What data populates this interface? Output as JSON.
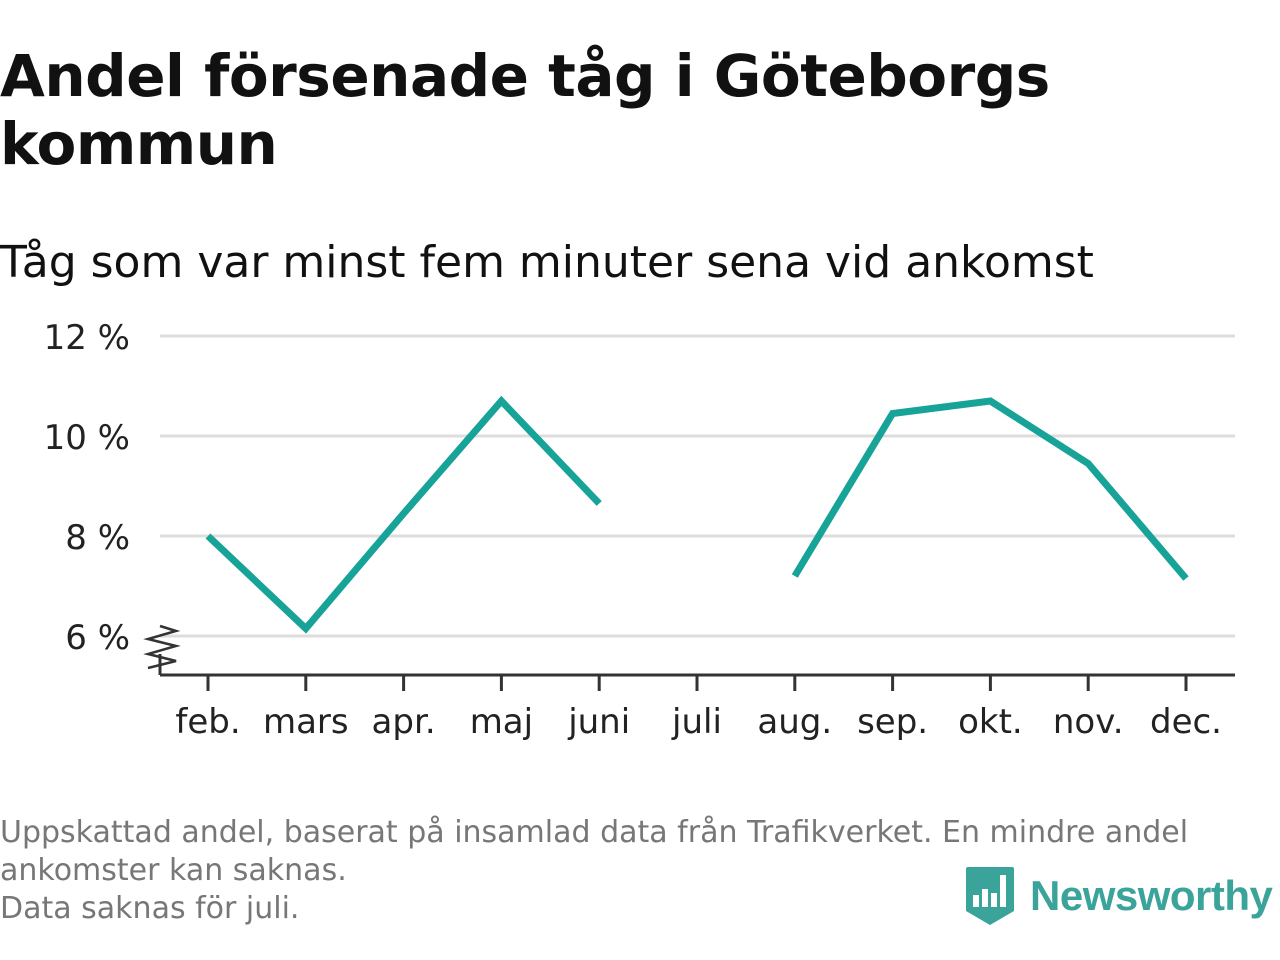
{
  "title": "Andel försenade tåg i Göteborgs kommun",
  "subtitle": "Tåg som var minst fem minuter sena vid ankomst",
  "footnotes": [
    "Uppskattad andel, baserat på insamlad data från Trafikverket. En mindre andel",
    "ankomster kan saknas.",
    "Data saknas för juli."
  ],
  "brand": {
    "name": "Newsworthy",
    "logo": "newsworthy-logo-icon"
  },
  "colors": {
    "line": "#17a398",
    "grid": "#dddddd",
    "axis": "#333333",
    "text": "#222222",
    "brand": "#3aa39a"
  },
  "chart_data": {
    "type": "line",
    "categories": [
      "feb.",
      "mars",
      "apr.",
      "maj",
      "juni",
      "juli",
      "aug.",
      "sep.",
      "okt.",
      "nov.",
      "dec."
    ],
    "series": [
      {
        "values": [
          8.0,
          6.15,
          8.45,
          10.7,
          8.65,
          null,
          7.2,
          10.45,
          10.7,
          9.45,
          7.15
        ]
      }
    ],
    "y_ticks": [
      6,
      8,
      10,
      12
    ],
    "y_tick_labels": [
      "6 %",
      "8 %",
      "10 %",
      "12 %"
    ],
    "ylim": [
      5.2,
      12
    ],
    "y_axis_break": true,
    "grid": true,
    "xlabel": "",
    "ylabel": ""
  }
}
